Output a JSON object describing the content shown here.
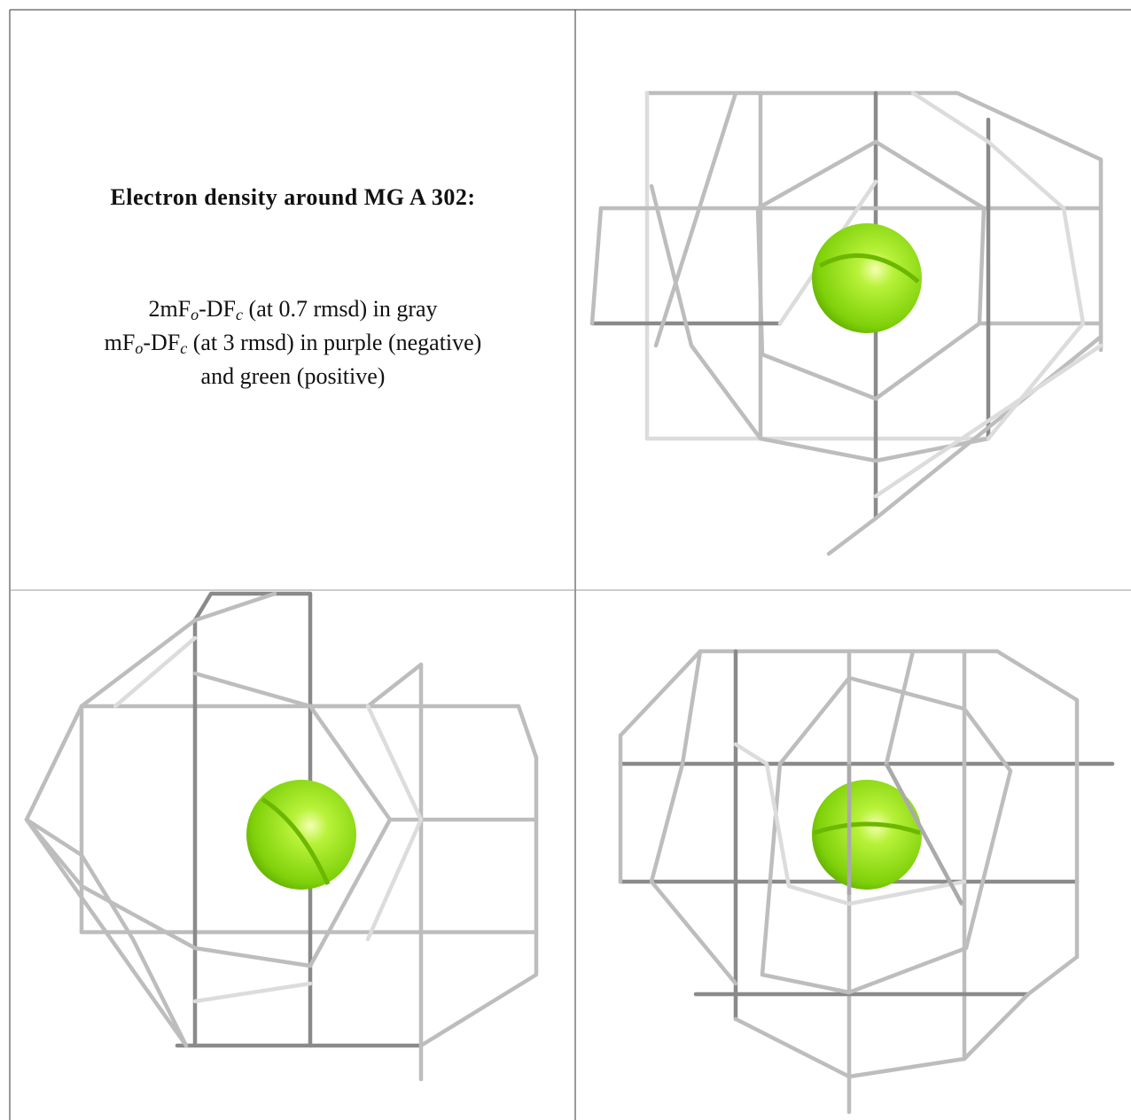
{
  "caption": {
    "title": "Electron density around MG A 302:",
    "lines": [
      [
        "2mF",
        "o",
        "-DF",
        "c",
        " (at 0.7 rmsd) in gray"
      ],
      [
        "mF",
        "o",
        "-DF",
        "c",
        " (at 3 rmsd) in purple (negative)"
      ],
      [
        "and green (positive)"
      ]
    ]
  }
}
